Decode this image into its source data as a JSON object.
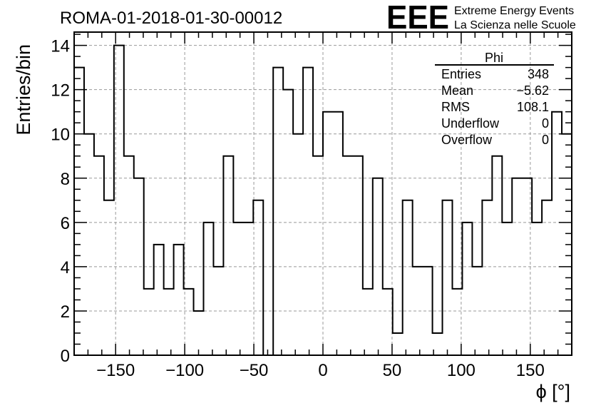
{
  "header": {
    "run_title": "ROMA-01-2018-01-30-00012",
    "logo_text": "EEE",
    "logo_line1": "Extreme Energy Events",
    "logo_line2": "La Scienza nelle Scuole",
    "logo_color": "#1a1aff"
  },
  "stats": {
    "name": "Phi",
    "rows": [
      {
        "label": "Entries",
        "value": "348"
      },
      {
        "label": "Mean",
        "value": "−5.62"
      },
      {
        "label": "RMS",
        "value": "108.1"
      },
      {
        "label": "Underflow",
        "value": "0"
      },
      {
        "label": "Overflow",
        "value": "0"
      }
    ]
  },
  "chart_data": {
    "type": "histogram",
    "xlabel": "ϕ [°]",
    "ylabel": "Entries/bin",
    "xlim": [
      -180,
      180
    ],
    "ylim": [
      0,
      14.6
    ],
    "bin_width": 7.2,
    "values": [
      13,
      10,
      9,
      7,
      14,
      9,
      8,
      3,
      5,
      3,
      5,
      3,
      2,
      6,
      4,
      9,
      6,
      6,
      7,
      0,
      13,
      12,
      10,
      13,
      9,
      11,
      11,
      9,
      9,
      3,
      8,
      3,
      1,
      7,
      4,
      4,
      1,
      7,
      3,
      6,
      4,
      7,
      9,
      6,
      8,
      8,
      6,
      7,
      11,
      10
    ],
    "x_ticks": [
      -150,
      -100,
      -50,
      0,
      50,
      100,
      150
    ],
    "x_tick_labels": [
      "−150",
      "−100",
      "−50",
      "0",
      "50",
      "100",
      "150"
    ],
    "y_ticks": [
      0,
      2,
      4,
      6,
      8,
      10,
      12,
      14
    ],
    "y_tick_labels": [
      "0",
      "2",
      "4",
      "6",
      "8",
      "10",
      "12",
      "14"
    ],
    "grid": true,
    "line_color": "#000000"
  }
}
